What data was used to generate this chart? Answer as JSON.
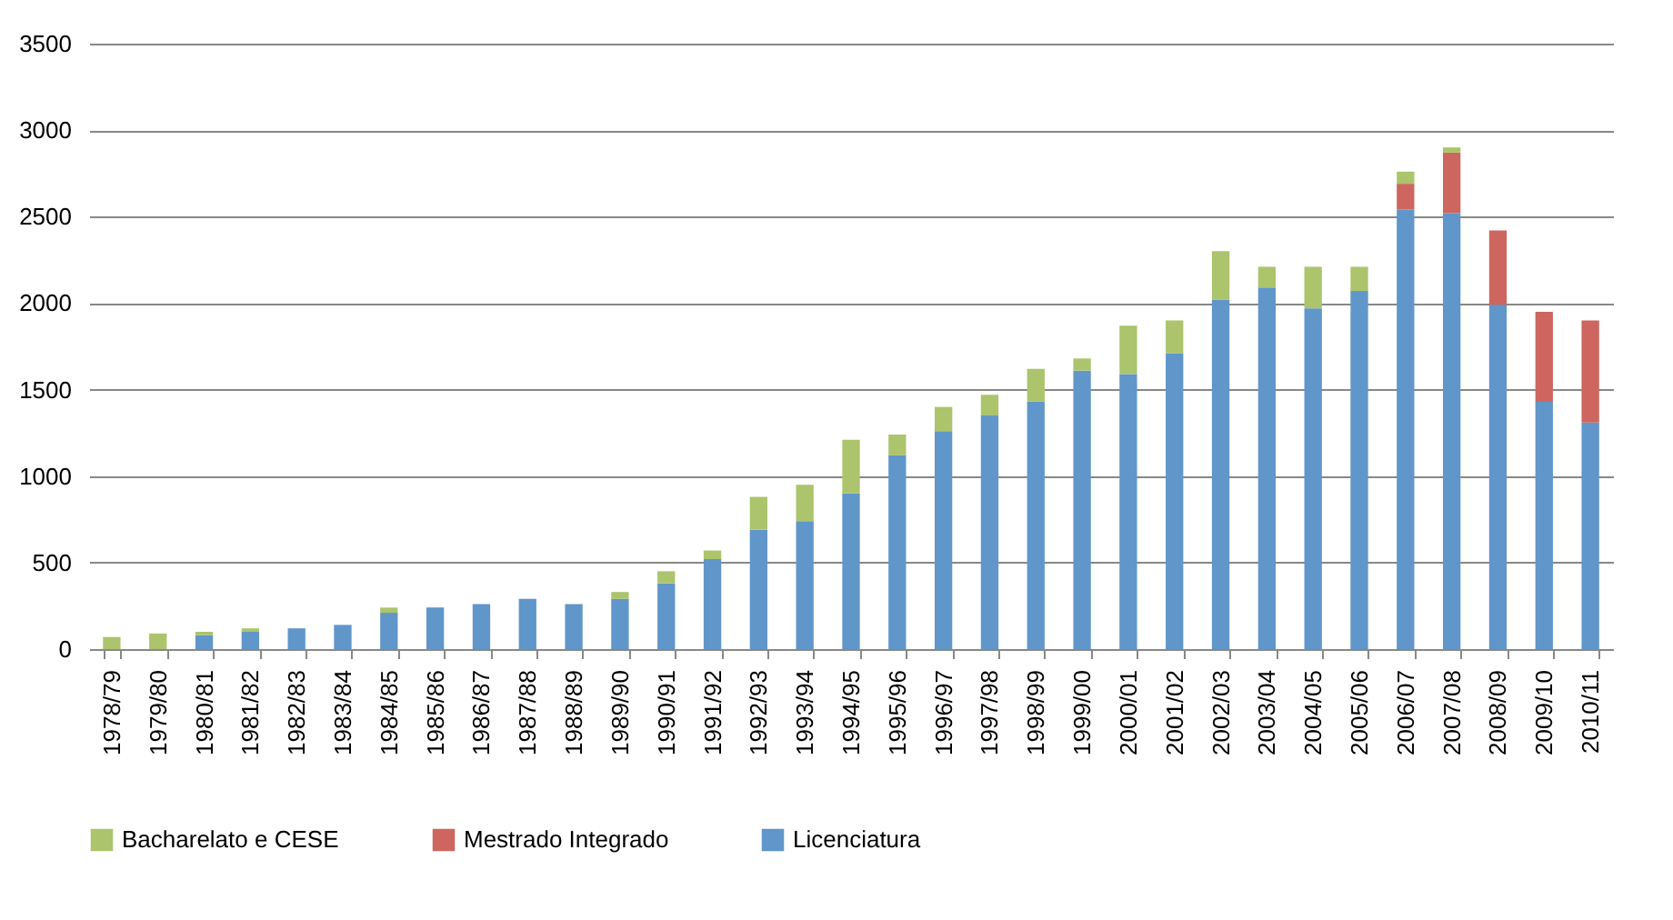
{
  "chart_data": {
    "type": "bar",
    "stacked": true,
    "categories": [
      "1978/79",
      "1979/80",
      "1980/81",
      "1981/82",
      "1982/83",
      "1983/84",
      "1984/85",
      "1985/86",
      "1986/87",
      "1987/88",
      "1988/89",
      "1989/90",
      "1990/91",
      "1991/92",
      "1992/93",
      "1993/94",
      "1994/95",
      "1995/96",
      "1996/97",
      "1997/98",
      "1998/99",
      "1999/00",
      "2000/01",
      "2001/02",
      "2002/03",
      "2003/04",
      "2004/05",
      "2005/06",
      "2006/07",
      "2007/08",
      "2008/09",
      "2009/10",
      "2010/11"
    ],
    "series": [
      {
        "name": "Licenciatura",
        "color": "#6096ca",
        "values": [
          null,
          null,
          80,
          100,
          120,
          140,
          210,
          240,
          260,
          290,
          260,
          290,
          380,
          520,
          690,
          740,
          900,
          1120,
          1260,
          1350,
          1430,
          1610,
          1590,
          1710,
          2020,
          2090,
          1970,
          2070,
          2540,
          2520,
          1990,
          1430,
          1310
        ]
      },
      {
        "name": "Mestrado Integrado",
        "color": "#cd665e",
        "values": [
          null,
          null,
          null,
          null,
          null,
          null,
          null,
          null,
          null,
          null,
          null,
          null,
          null,
          null,
          null,
          null,
          null,
          null,
          null,
          null,
          null,
          null,
          null,
          null,
          null,
          null,
          null,
          null,
          150,
          350,
          430,
          520,
          590
        ]
      },
      {
        "name": "Bacharelato e CESE",
        "color": "#acc46c",
        "values": [
          70,
          90,
          20,
          20,
          null,
          null,
          30,
          null,
          null,
          null,
          null,
          40,
          70,
          50,
          190,
          210,
          310,
          120,
          140,
          120,
          190,
          70,
          280,
          190,
          280,
          120,
          240,
          140,
          70,
          30,
          null,
          null,
          null
        ]
      }
    ],
    "ylim": [
      0,
      3500
    ],
    "yticks": [
      0,
      500,
      1000,
      1500,
      2000,
      2500,
      3000,
      3500
    ],
    "grid": "y",
    "legend": "bottom"
  }
}
